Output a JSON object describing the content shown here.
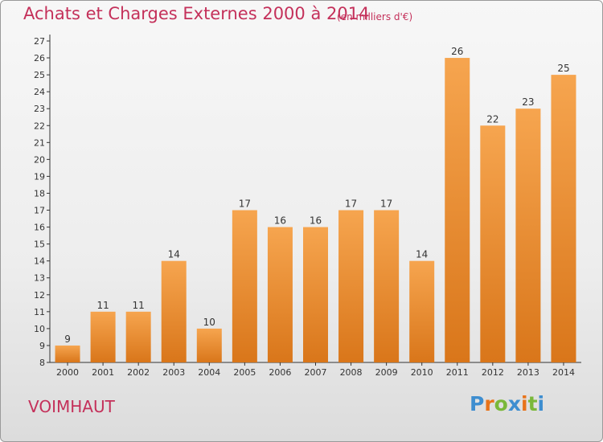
{
  "header": {
    "title": "Achats et Charges Externes 2000 à 2014",
    "unit": "(en milliers d'€)"
  },
  "footer": {
    "commune": "VOIMHAUT",
    "logo_letters": [
      "P",
      "r",
      "o",
      "x",
      "i",
      "t",
      "i"
    ],
    "logo_colors": [
      "#3e8ed0",
      "#e8731a",
      "#7ab83a",
      "#3e8ed0",
      "#e8731a",
      "#7ab83a",
      "#3e8ed0"
    ]
  },
  "colors": {
    "bar_top": "#f6a54f",
    "bar_bottom": "#d9761a",
    "text_accent": "#c4305a"
  },
  "chart_data": {
    "type": "bar",
    "categories": [
      "2000",
      "2001",
      "2002",
      "2003",
      "2004",
      "2005",
      "2006",
      "2007",
      "2008",
      "2009",
      "2010",
      "2011",
      "2012",
      "2013",
      "2014"
    ],
    "values": [
      9,
      11,
      11,
      14,
      10,
      17,
      16,
      16,
      17,
      17,
      14,
      26,
      22,
      23,
      25
    ],
    "title": "Achats et Charges Externes 2000 à 2014",
    "ylim": [
      8,
      27
    ],
    "yticks": [
      8,
      9,
      10,
      11,
      12,
      13,
      14,
      15,
      16,
      17,
      18,
      19,
      20,
      21,
      22,
      23,
      24,
      25,
      26,
      27
    ],
    "grid": false,
    "legend": "none"
  }
}
